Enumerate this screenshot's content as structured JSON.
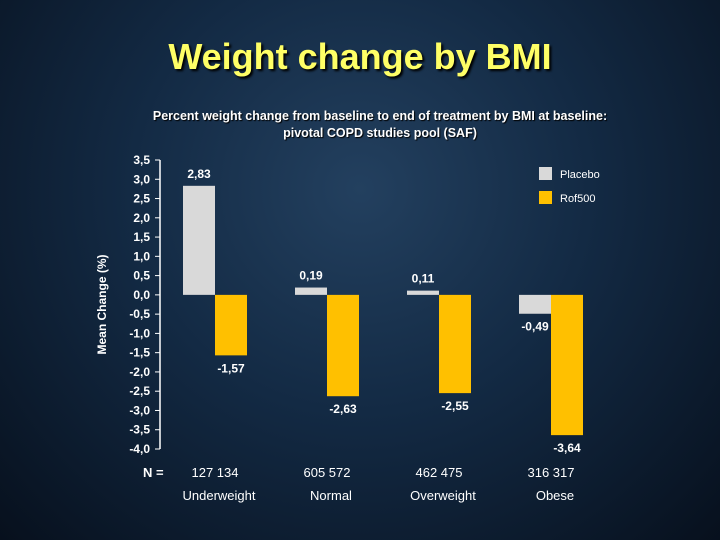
{
  "title": "Weight change by BMI",
  "subtitle_line1": "Percent weight change from baseline to end of treatment by BMI at baseline:",
  "subtitle_line2": "pivotal COPD studies pool (SAF)",
  "colors": {
    "placebo": "#d9d9d9",
    "rof500": "#ffc000",
    "axis": "#ffffff",
    "text": "#ffffff"
  },
  "chart_data": {
    "type": "bar",
    "ylabel": "Mean Change (%)",
    "ylim": [
      -4.0,
      3.5
    ],
    "ytick_step": 0.5,
    "yticks": [
      "3,5",
      "3,0",
      "2,5",
      "2,0",
      "1,5",
      "1,0",
      "0,5",
      "0,0",
      "-0,5",
      "-1,0",
      "-1,5",
      "-2,0",
      "-2,5",
      "-3,0",
      "-3,5",
      "-4,0"
    ],
    "categories": [
      "Underweight",
      "Normal",
      "Overweight",
      "Obese"
    ],
    "n_label": "N =",
    "n_counts": [
      "127  134",
      "605  572",
      "462  475",
      "316  317"
    ],
    "series": [
      {
        "name": "Placebo",
        "values": [
          2.83,
          0.19,
          0.11,
          -0.49
        ],
        "labels": [
          "2,83",
          "0,19",
          "0,11",
          "-0,49"
        ]
      },
      {
        "name": "Rof500",
        "values": [
          -1.57,
          -2.63,
          -2.55,
          -3.64
        ],
        "labels": [
          "-1,57",
          "-2,63",
          "-2,55",
          "-3,64"
        ]
      }
    ],
    "legend_position": "top-right"
  }
}
